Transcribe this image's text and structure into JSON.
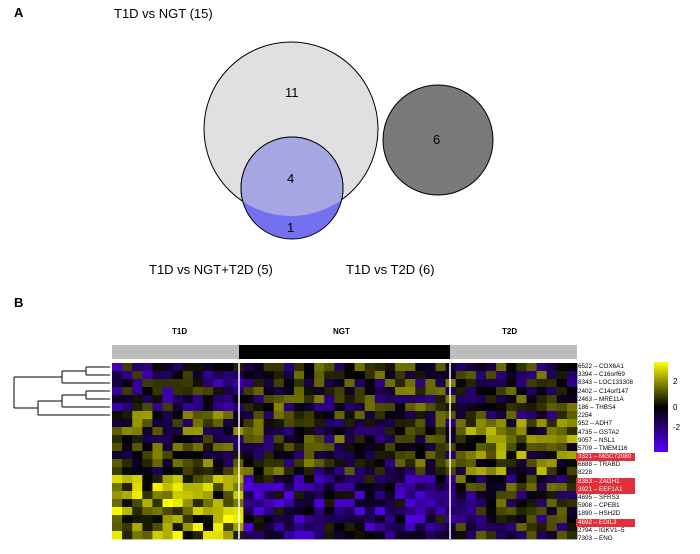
{
  "panel_a": {
    "letter": "A",
    "titles": {
      "t1d_vs_ngt": "T1D vs NGT (15)",
      "t1d_vs_ngt_t2d": "T1D vs NGT+T2D (5)",
      "t1d_vs_t2d": "T1D vs T2D (6)"
    },
    "counts": {
      "ngt_only": "11",
      "overlap": "4",
      "ngt_t2d_only": "1",
      "t2d": "6"
    },
    "colors": {
      "ngt": "#e0e0e0",
      "overlap": "#a7a6e5",
      "ngt_t2d": "#7371ef",
      "t2d": "#7a7a7a"
    }
  },
  "panel_b": {
    "letter": "B",
    "groups": [
      "T1D",
      "NGT",
      "T2D"
    ],
    "group_bar_colors": [
      "#bdbdbd",
      "#000000",
      "#bdbdbd"
    ],
    "genes": [
      {
        "label": "6522 – COX6A1",
        "highlight": false
      },
      {
        "label": "3394 – C16orf69",
        "highlight": false
      },
      {
        "label": "8343 – LOC133308",
        "highlight": false
      },
      {
        "label": "2402 – C14orf147",
        "highlight": false
      },
      {
        "label": "2463 – MRE11A",
        "highlight": false
      },
      {
        "label": "186 – THBS4",
        "highlight": false
      },
      {
        "label": "2254",
        "highlight": false
      },
      {
        "label": "952 – ADH7",
        "highlight": false
      },
      {
        "label": "4735 – GSTA2",
        "highlight": false
      },
      {
        "label": "9057 – NSL1",
        "highlight": false
      },
      {
        "label": "5709 – TMEM116",
        "highlight": false
      },
      {
        "label": "3321 – MGC72080",
        "highlight": true
      },
      {
        "label": "6888 – TRABD",
        "highlight": false
      },
      {
        "label": "8228",
        "highlight": false
      },
      {
        "label": "8363 – ZADH1",
        "highlight": true
      },
      {
        "label": "3921 – EEF1A1",
        "highlight": true
      },
      {
        "label": "4695 – SFRS3",
        "highlight": false
      },
      {
        "label": "5908 – CPEB1",
        "highlight": false
      },
      {
        "label": "1890 – HSH2D",
        "highlight": false
      },
      {
        "label": "4692 – EDIL3",
        "highlight": true
      },
      {
        "label": "2794 – IGKV1–5",
        "highlight": false
      },
      {
        "label": "7303 – ENG",
        "highlight": false
      }
    ],
    "colorbar": {
      "ticks": [
        "2",
        "0",
        "-2"
      ],
      "colors": [
        "#ffff00",
        "#000000",
        "#5a00ff"
      ]
    }
  }
}
